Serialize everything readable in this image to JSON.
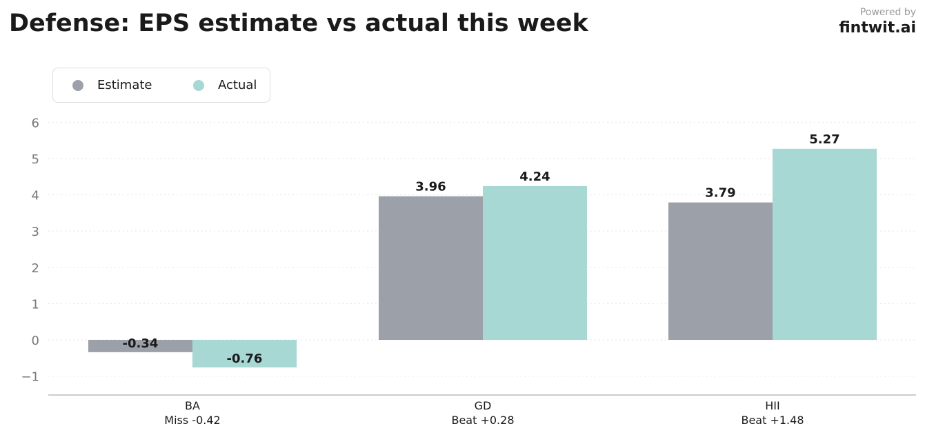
{
  "header": {
    "title": "Defense: EPS estimate vs actual this week",
    "powered_by": "Powered by",
    "brand": "fintwit.ai"
  },
  "colors": {
    "estimate": "#9ca0a8",
    "actual": "#a7d8d4",
    "grid": "#e6e6e6",
    "axis": "#bbbbbb"
  },
  "chart_data": {
    "type": "bar",
    "title": "Defense: EPS estimate vs actual this week",
    "categories": [
      "BA",
      "GD",
      "HII"
    ],
    "category_sublabels": [
      "Miss -0.42",
      "Beat +0.28",
      "Beat +1.48"
    ],
    "series": [
      {
        "name": "Estimate",
        "values": [
          -0.34,
          3.96,
          3.79
        ],
        "labels": [
          "-0.34",
          "3.96",
          "3.79"
        ]
      },
      {
        "name": "Actual",
        "values": [
          -0.76,
          4.24,
          5.27
        ],
        "labels": [
          "-0.76",
          "4.24",
          "5.27"
        ]
      }
    ],
    "yticks": [
      -1,
      0,
      1,
      2,
      3,
      4,
      5,
      6
    ],
    "ytick_labels": [
      "−1",
      "0",
      "1",
      "2",
      "3",
      "4",
      "5",
      "6"
    ],
    "ylim": [
      -1.5,
      6
    ],
    "grid": true,
    "legend": "top-left"
  }
}
